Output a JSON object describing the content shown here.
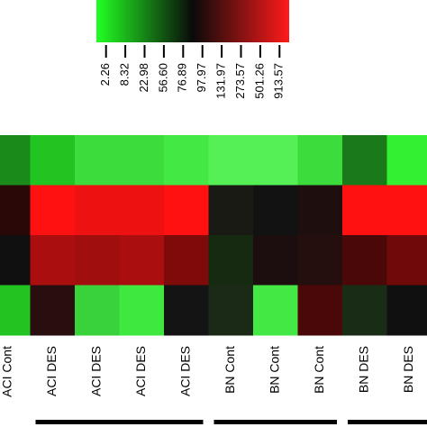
{
  "chart_data": {
    "type": "heatmap",
    "title": "",
    "xlabel": "",
    "ylabel": "",
    "legend": {
      "placement": "top",
      "gradient_colors": [
        "#22ff22",
        "#0a0a0a",
        "#ff1a1a"
      ],
      "tick_labels": [
        "2.26",
        "8.32",
        "22.98",
        "56.60",
        "76.89",
        "97.97",
        "131.97",
        "273.57",
        "501.26",
        "913.57"
      ]
    },
    "columns": [
      "ACI Cont",
      "ACI DES",
      "ACI DES",
      "ACI DES",
      "ACI DES",
      "BN Cont",
      "BN Cont",
      "BN Cont",
      "BN DES",
      "BN DES",
      "BN DES"
    ],
    "column_labels_visible": [
      "ACI Cont",
      "ACI DES",
      "ACI DES",
      "ACI DES",
      "ACI DES",
      "BN Cont",
      "BN Cont",
      "BN Cont",
      "BN DES",
      "BN DES",
      "BN DES"
    ],
    "group_bars": [
      {
        "first_col": 1,
        "last_col": 4
      },
      {
        "first_col": 5,
        "last_col": 7
      },
      {
        "first_col": 8,
        "last_col": 10
      }
    ],
    "rows": 4,
    "cell_colors": [
      [
        "#1a8a1a",
        "#22c422",
        "#3ddc3d",
        "#3ddc3d",
        "#44e844",
        "#55f055",
        "#55f055",
        "#3ddc3d",
        "#1a7a1a",
        "#33f033",
        "#1a7a1a"
      ],
      [
        "#2a0808",
        "#ff1111",
        "#ee1111",
        "#ee1111",
        "#ff1111",
        "#1a1a14",
        "#121212",
        "#1e0e0e",
        "#ff1111",
        "#ff1111",
        "#ee1111"
      ],
      [
        "#101010",
        "#aa0e0e",
        "#a00e0e",
        "#aa0e0e",
        "#7e0a0a",
        "#162a12",
        "#1c0e0e",
        "#240e0e",
        "#4a0808",
        "#700a0a",
        "#300808"
      ],
      [
        "#22c422",
        "#280e0e",
        "#3ad23a",
        "#3ee83e",
        "#141414",
        "#1a2a16",
        "#44e844",
        "#4a0808",
        "#182c16",
        "#101010",
        "#20a020"
      ]
    ]
  }
}
